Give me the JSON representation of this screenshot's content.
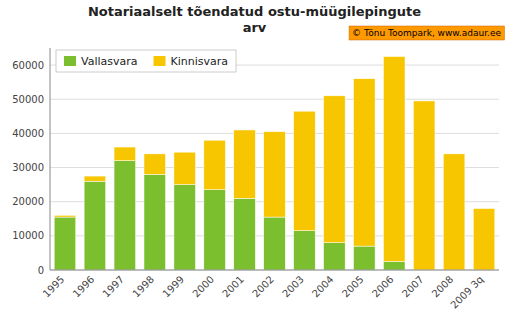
{
  "chart_data": {
    "type": "bar",
    "stacked": true,
    "title": "Notariaalselt tõendatud ostu-müügilepingute\narv",
    "annotations": [
      "© Tõnu Toompark, www.adaur.ee"
    ],
    "categories": [
      "1995",
      "1996",
      "1997",
      "1998",
      "1999",
      "2000",
      "2001",
      "2002",
      "2003",
      "2004",
      "2005",
      "2006",
      "2007",
      "2008",
      "2009 3q"
    ],
    "series": [
      {
        "name": "Vallasvara",
        "color": "#7bbf2e",
        "values": [
          15500,
          26000,
          32000,
          28000,
          25000,
          23500,
          21000,
          15500,
          11500,
          8000,
          7000,
          2500,
          0,
          0,
          0
        ]
      },
      {
        "name": "Kinnisvara",
        "color": "#f7c600",
        "values": [
          500,
          1500,
          4000,
          6000,
          9500,
          14500,
          20000,
          25000,
          35000,
          43000,
          49000,
          60000,
          49500,
          34000,
          18000
        ]
      }
    ],
    "ylim": [
      0,
      65000
    ],
    "yticks": [
      0,
      10000,
      20000,
      30000,
      40000,
      50000,
      60000
    ],
    "grid": true,
    "legend": "upper left"
  }
}
